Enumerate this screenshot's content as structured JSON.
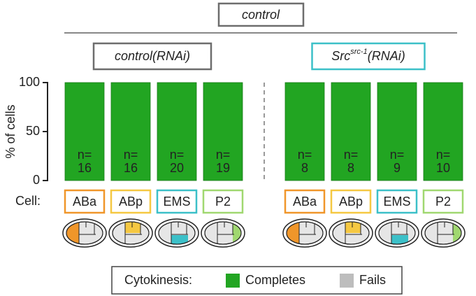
{
  "chart_data": {
    "type": "bar",
    "title": "control",
    "groups": [
      {
        "label": "control(RNAi)",
        "color": "#6d6d6d"
      },
      {
        "label": {
          "base": "Src",
          "sup": "src-1",
          "rest": "(RNAi)"
        },
        "color": "#3cc0c8"
      }
    ],
    "y_axis_label": "% of cells",
    "category_axis_label": "Cell:",
    "categories": [
      "ABa",
      "ABp",
      "EMS",
      "P2",
      "ABa",
      "ABp",
      "EMS",
      "P2"
    ],
    "category_colors": [
      "#f0962a",
      "#f5c842",
      "#3cc0c8",
      "#a0d870",
      "#f0962a",
      "#f5c842",
      "#3cc0c8",
      "#a0d870"
    ],
    "series": [
      {
        "name": "Completes",
        "color": "#22a522",
        "values": [
          100,
          100,
          100,
          100,
          100,
          100,
          100,
          100
        ]
      },
      {
        "name": "Fails",
        "color": "#bdbdbd",
        "values": [
          0,
          0,
          0,
          0,
          0,
          0,
          0,
          0
        ]
      }
    ],
    "n_label": "n=",
    "n": [
      16,
      16,
      20,
      19,
      8,
      8,
      9,
      10
    ],
    "ylim": [
      0,
      100
    ],
    "yticks": [
      0,
      50,
      100
    ],
    "legend_title": "Cytokinesis:"
  }
}
